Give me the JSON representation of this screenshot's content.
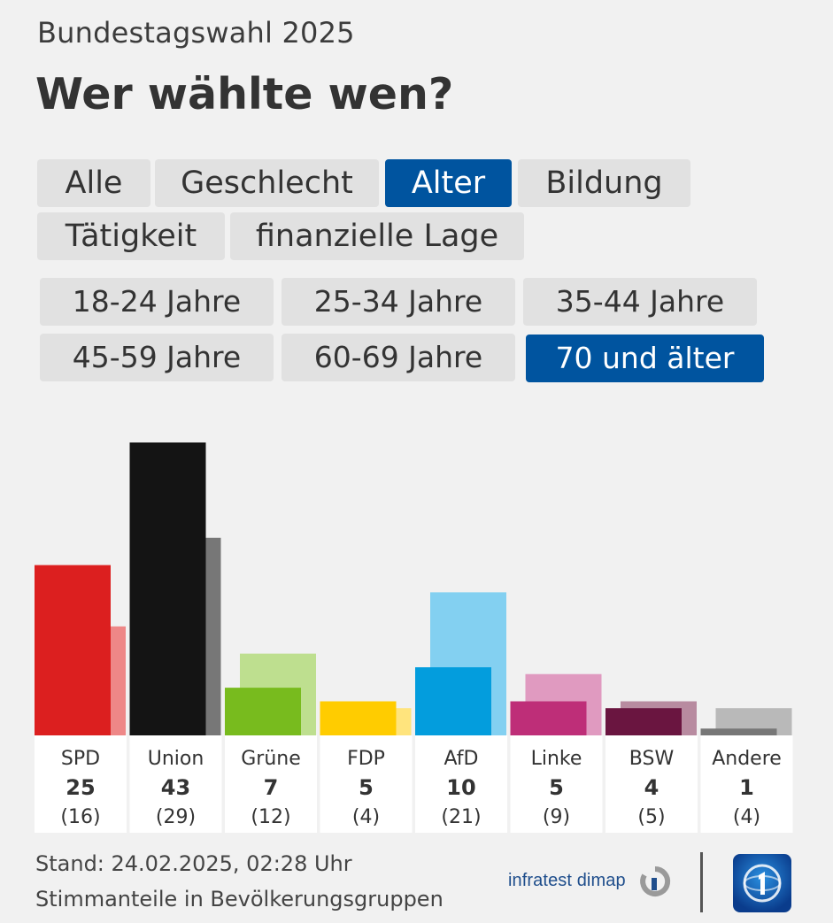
{
  "header": {
    "kicker": "Bundestagswahl 2025",
    "title": "Wer wählte wen?"
  },
  "category_tabs": [
    {
      "label": "Alle",
      "active": false
    },
    {
      "label": "Geschlecht",
      "active": false
    },
    {
      "label": "Alter",
      "active": true
    },
    {
      "label": "Bildung",
      "active": false
    },
    {
      "label": "Tätigkeit",
      "active": false
    },
    {
      "label": "finanzielle Lage",
      "active": false
    }
  ],
  "age_tabs": [
    {
      "label": "18-24 Jahre",
      "active": false
    },
    {
      "label": "25-34 Jahre",
      "active": false
    },
    {
      "label": "35-44 Jahre",
      "active": false
    },
    {
      "label": "45-59 Jahre",
      "active": false
    },
    {
      "label": "60-69 Jahre",
      "active": false
    },
    {
      "label": "70 und älter",
      "active": true
    }
  ],
  "chart_data": {
    "type": "bar",
    "categories": [
      "SPD",
      "Union",
      "Grüne",
      "FDP",
      "AfD",
      "Linke",
      "BSW",
      "Andere"
    ],
    "series": [
      {
        "values": [
          25,
          43,
          7,
          5,
          10,
          5,
          4,
          1
        ]
      },
      {
        "values": [
          16,
          29,
          12,
          4,
          21,
          9,
          5,
          4
        ]
      }
    ],
    "value_labels": [
      "25",
      "43",
      "7",
      "5",
      "10",
      "5",
      "4",
      "1"
    ],
    "prev_labels": [
      "(16)",
      "(29)",
      "(12)",
      "(4)",
      "(21)",
      "(9)",
      "(5)",
      "(4)"
    ],
    "colors": [
      "#dc1f1f",
      "#141414",
      "#78bb1e",
      "#ffcc00",
      "#039ddd",
      "#be2e78",
      "#6a1540",
      "#777777"
    ],
    "colors_prev": [
      "#ee8787",
      "#777777",
      "#bedf8f",
      "#ffe47d",
      "#83d0f1",
      "#e09ac0",
      "#b88ba0",
      "#b9b9b9"
    ],
    "ylim": [
      0,
      43
    ]
  },
  "footer": {
    "stand": "Stand: 24.02.2025, 02:28 Uhr",
    "note": "Stimmanteile in Bevölkerungsgruppen",
    "brand": "infratest dimap"
  }
}
